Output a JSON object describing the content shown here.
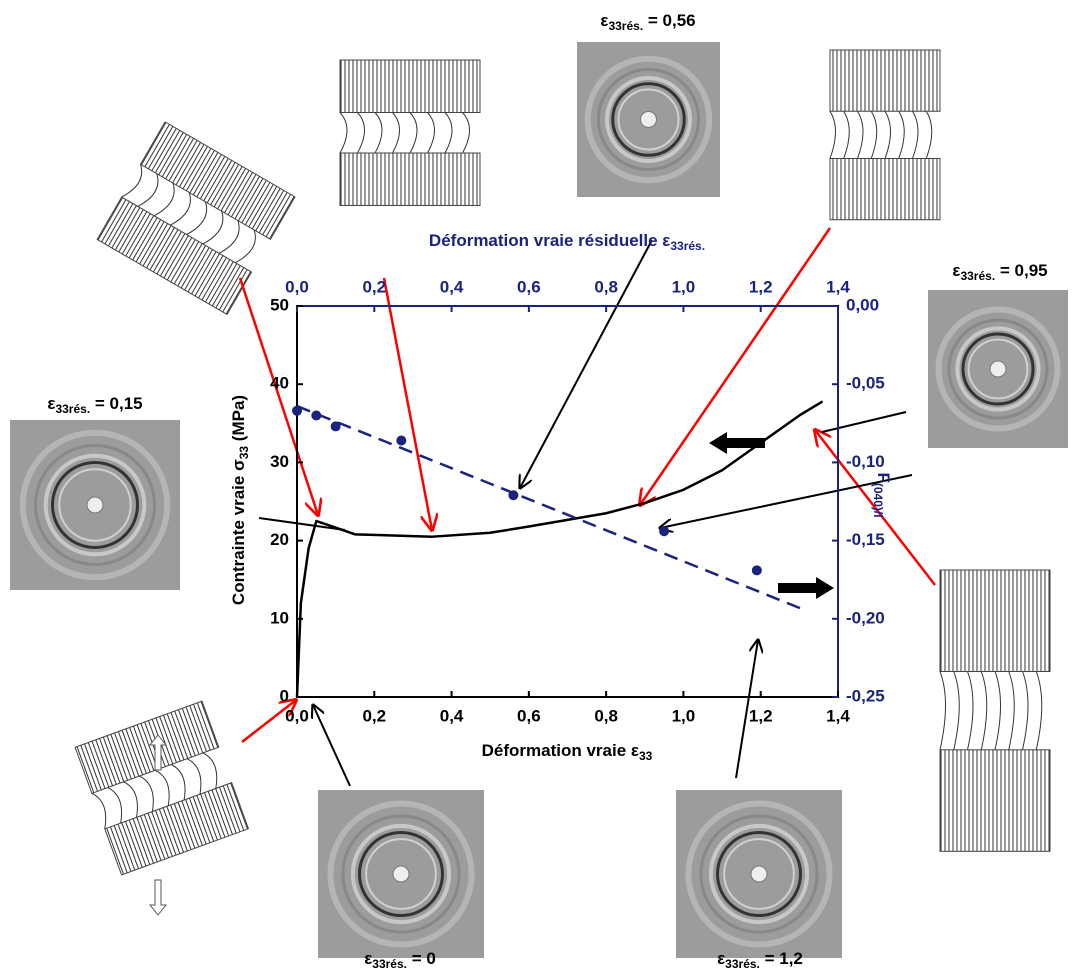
{
  "chart_data": {
    "type": "line",
    "x_label": {
      "main": "Déformation vraie ε",
      "sub": "33"
    },
    "x2_label": {
      "main": "Déformation vraie résiduelle ε",
      "sub": "33rés."
    },
    "y_label": {
      "main": "Contrainte vraie σ",
      "sub": "33",
      "tail": " (MPa)"
    },
    "y2_label": {
      "main": "F",
      "sub": "(040)/l"
    },
    "xlim": [
      0,
      1.4
    ],
    "x2lim": [
      0,
      1.4
    ],
    "ylim": [
      0,
      50
    ],
    "y2lim": [
      -0.25,
      0
    ],
    "xticks": [
      {
        "value": 0,
        "label": "0,0"
      },
      {
        "value": 0.2,
        "label": "0,2"
      },
      {
        "value": 0.4,
        "label": "0,4"
      },
      {
        "value": 0.6,
        "label": "0,6"
      },
      {
        "value": 0.8,
        "label": "0,8"
      },
      {
        "value": 1.0,
        "label": "1,0"
      },
      {
        "value": 1.2,
        "label": "1,2"
      },
      {
        "value": 1.4,
        "label": "1,4"
      }
    ],
    "x2ticks": [
      {
        "value": 0,
        "label": "0,0"
      },
      {
        "value": 0.2,
        "label": "0,2"
      },
      {
        "value": 0.4,
        "label": "0,4"
      },
      {
        "value": 0.6,
        "label": "0,6"
      },
      {
        "value": 0.8,
        "label": "0,8"
      },
      {
        "value": 1.0,
        "label": "1,0"
      },
      {
        "value": 1.2,
        "label": "1,2"
      },
      {
        "value": 1.4,
        "label": "1,4"
      }
    ],
    "yticks": [
      0,
      10,
      20,
      30,
      40,
      50
    ],
    "y2ticks": [
      {
        "value": 0,
        "label": "0,00"
      },
      {
        "value": -0.05,
        "label": "-0,05"
      },
      {
        "value": -0.1,
        "label": "-0,10"
      },
      {
        "value": -0.15,
        "label": "-0,15"
      },
      {
        "value": -0.2,
        "label": "-0,20"
      },
      {
        "value": -0.25,
        "label": "-0,25"
      }
    ],
    "axis_color": "#1a237e",
    "series": [
      {
        "type": "line",
        "color": "#000000",
        "x": [
          0,
          0.01,
          0.03,
          0.05,
          0.08,
          0.15,
          0.35,
          0.5,
          0.6,
          0.8,
          0.9,
          1.0,
          1.1,
          1.2,
          1.3,
          1.36
        ],
        "values": [
          0,
          12,
          19,
          22.5,
          22,
          20.8,
          20.5,
          21,
          21.8,
          23.5,
          24.8,
          26.5,
          29,
          32.5,
          36,
          37.8
        ]
      },
      {
        "type": "scatter",
        "color": "#1a237e",
        "axis": "y2",
        "x_axis": "x2",
        "x": [
          0.0,
          0.05,
          0.1,
          0.27,
          0.56,
          0.95,
          1.19
        ],
        "values": [
          -0.067,
          -0.07,
          -0.077,
          -0.086,
          -0.121,
          -0.144,
          -0.169
        ]
      },
      {
        "type": "line",
        "style": "dashed",
        "color": "#1a237e",
        "axis": "y2",
        "x_axis": "x2",
        "x": [
          0.0,
          1.32
        ],
        "values": [
          -0.064,
          -0.195
        ]
      }
    ],
    "annotations": [
      {
        "symbol": "ε",
        "sub": "33rés.",
        "text": " = 0,56"
      },
      {
        "symbol": "ε",
        "sub": "33rés.",
        "text": " = 0,95"
      },
      {
        "symbol": "ε",
        "sub": "33rés.",
        "text": " = 0,15"
      },
      {
        "symbol": "ε",
        "sub": "33rés.",
        "text": " = 0"
      },
      {
        "symbol": "ε",
        "sub": "33rés.",
        "text": " = 1,2"
      }
    ]
  }
}
